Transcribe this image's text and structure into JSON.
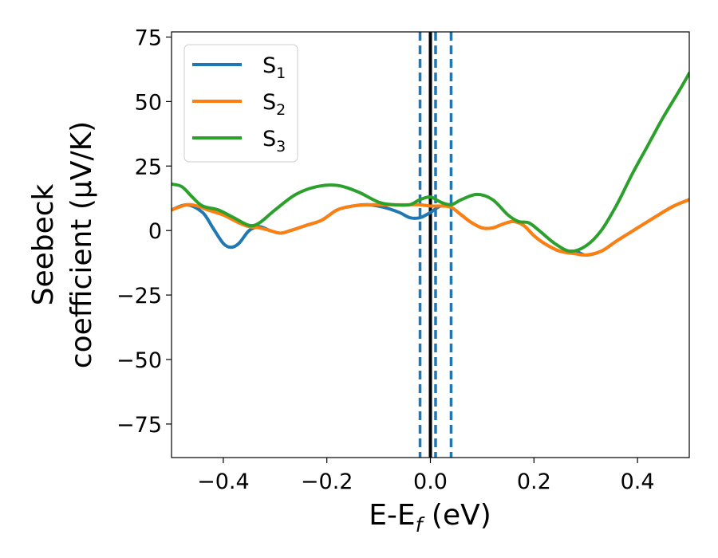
{
  "chart_data": {
    "type": "line",
    "xlabel": "E-E",
    "xlabel_sub": "f",
    "xlabel_unit": " (eV)",
    "ylabel_line1": "Seebeck",
    "ylabel_line2": "coefficient  (μV/K)",
    "xlim": [
      -0.5,
      0.5
    ],
    "ylim": [
      -88,
      77
    ],
    "xticks": [
      -0.4,
      -0.2,
      0.0,
      0.2,
      0.4
    ],
    "xtick_labels": [
      "−0.4",
      "−0.2",
      "0.0",
      "0.2",
      "0.4"
    ],
    "yticks": [
      -75,
      -50,
      -25,
      0,
      25,
      50,
      75
    ],
    "ytick_labels": [
      "−75",
      "−50",
      "−25",
      "0",
      "25",
      "50",
      "75"
    ],
    "legend_position": "top-left",
    "series": [
      {
        "name": "S",
        "sub": "1",
        "color": "#1f77b4",
        "x": [
          -0.5,
          -0.47,
          -0.44,
          -0.42,
          -0.4,
          -0.385,
          -0.37,
          -0.35,
          -0.33,
          -0.31,
          -0.29,
          -0.27,
          -0.24,
          -0.21,
          -0.18,
          -0.15,
          -0.12,
          -0.09,
          -0.06,
          -0.04,
          -0.02,
          0.0,
          0.02,
          0.04,
          0.06,
          0.08,
          0.1,
          0.12,
          0.14,
          0.16,
          0.18,
          0.2,
          0.22,
          0.25,
          0.28,
          0.3,
          0.33,
          0.36,
          0.4,
          0.44,
          0.47,
          0.5
        ],
        "y": [
          8,
          10,
          7,
          1,
          -5,
          -6.5,
          -5,
          0,
          1.5,
          0,
          -1,
          0,
          2,
          4,
          8,
          9.5,
          10,
          9,
          7,
          5,
          5,
          7,
          9.5,
          9,
          6,
          3,
          1,
          1,
          2.5,
          3.5,
          2,
          -2,
          -5,
          -8,
          -8,
          -9.5,
          -8,
          -4,
          1,
          6,
          9.5,
          12
        ]
      },
      {
        "name": "S",
        "sub": "2",
        "color": "#ff7f0e",
        "x": [
          -0.5,
          -0.47,
          -0.45,
          -0.43,
          -0.4,
          -0.37,
          -0.35,
          -0.33,
          -0.31,
          -0.29,
          -0.27,
          -0.24,
          -0.21,
          -0.18,
          -0.15,
          -0.12,
          -0.09,
          -0.06,
          -0.04,
          -0.02,
          0.0,
          0.02,
          0.04,
          0.06,
          0.08,
          0.1,
          0.12,
          0.14,
          0.16,
          0.18,
          0.2,
          0.22,
          0.25,
          0.28,
          0.3,
          0.33,
          0.36,
          0.4,
          0.44,
          0.47,
          0.5
        ],
        "y": [
          8,
          10,
          9.5,
          8,
          6,
          3,
          1.5,
          1,
          0,
          -1,
          0,
          2,
          4,
          8,
          9.5,
          10,
          10,
          10,
          10,
          10,
          9.5,
          9.5,
          9,
          6,
          3,
          1,
          1,
          2.5,
          3.5,
          2,
          -2,
          -5,
          -8,
          -9,
          -9.5,
          -8,
          -4,
          1,
          6,
          9.5,
          12
        ]
      },
      {
        "name": "S",
        "sub": "3",
        "color": "#2ca02c",
        "x": [
          -0.5,
          -0.48,
          -0.46,
          -0.44,
          -0.41,
          -0.38,
          -0.35,
          -0.33,
          -0.3,
          -0.26,
          -0.22,
          -0.18,
          -0.14,
          -0.1,
          -0.07,
          -0.04,
          -0.02,
          0.0,
          0.02,
          0.04,
          0.06,
          0.09,
          0.12,
          0.15,
          0.17,
          0.19,
          0.21,
          0.24,
          0.27,
          0.3,
          0.33,
          0.36,
          0.39,
          0.42,
          0.45,
          0.48,
          0.5
        ],
        "y": [
          18,
          17,
          13,
          9.5,
          8,
          5,
          2,
          3,
          8,
          14,
          17,
          17.5,
          15,
          11,
          10,
          10,
          12,
          13,
          11,
          10,
          12,
          14,
          12,
          6,
          3.5,
          3,
          0,
          -5,
          -8,
          -6,
          0,
          10,
          22,
          33,
          44,
          54,
          61
        ]
      }
    ],
    "vlines": [
      {
        "x": -0.02,
        "color": "#1f77b4",
        "style": "dashed"
      },
      {
        "x": 0.0,
        "color": "#000000",
        "style": "solid"
      },
      {
        "x": 0.01,
        "color": "#1f77b4",
        "style": "dashed"
      },
      {
        "x": 0.04,
        "color": "#1f77b4",
        "style": "dashed"
      }
    ]
  }
}
